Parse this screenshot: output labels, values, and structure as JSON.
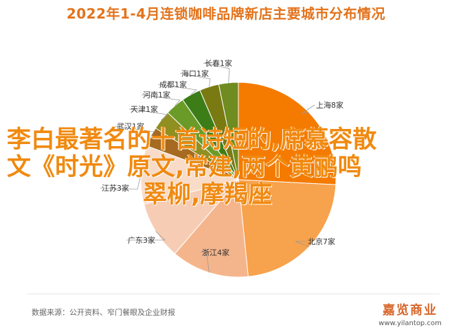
{
  "title": "2022年1-4月连锁咖啡品牌新店主要城市分布情况",
  "overlay": {
    "line1": "李白最著名的十首诗短的,席慕容散",
    "line2": "文《时光》原文,常建,两个黄鹂鸣",
    "line3": "翠柳,摩羯座"
  },
  "source": "数据来源：公开资料、窄门餐眼及企业财报",
  "logo": {
    "brand": "嘉览商业",
    "url": "www.yilantop.com"
  },
  "colors": {
    "上海": "#f47b00",
    "北京": "#f7a24c",
    "浙江": "#f5b58c",
    "广东": "#f6cdb4",
    "江苏": "#f8dcc8",
    "武汉": "#a66b20",
    "天津": "#8f8f22",
    "河南": "#6a9b28",
    "成都": "#3d7d18",
    "海口": "#7a7a12",
    "长春": "#6e8c20"
  },
  "chart_data": {
    "type": "pie",
    "title": "2022年1-4月连锁咖啡品牌新店主要城市分布情况",
    "unit": "家",
    "slices": [
      {
        "name": "上海",
        "label": "上海8家",
        "value": 8
      },
      {
        "name": "北京",
        "label": "北京7家",
        "value": 7
      },
      {
        "name": "浙江",
        "label": "浙江4家",
        "value": 4
      },
      {
        "name": "广东",
        "label": "广东3家",
        "value": 3
      },
      {
        "name": "江苏",
        "label": "江苏3家",
        "value": 3
      },
      {
        "name": "武汉",
        "label": "武汉1家",
        "value": 1
      },
      {
        "name": "天津",
        "label": "天津1家",
        "value": 1
      },
      {
        "name": "河南",
        "label": "河南1家",
        "value": 1
      },
      {
        "name": "成都",
        "label": "成都1家",
        "value": 1
      },
      {
        "name": "海口",
        "label": "海口1家",
        "value": 1
      },
      {
        "name": "长春",
        "label": "长春1家",
        "value": 1
      }
    ]
  }
}
